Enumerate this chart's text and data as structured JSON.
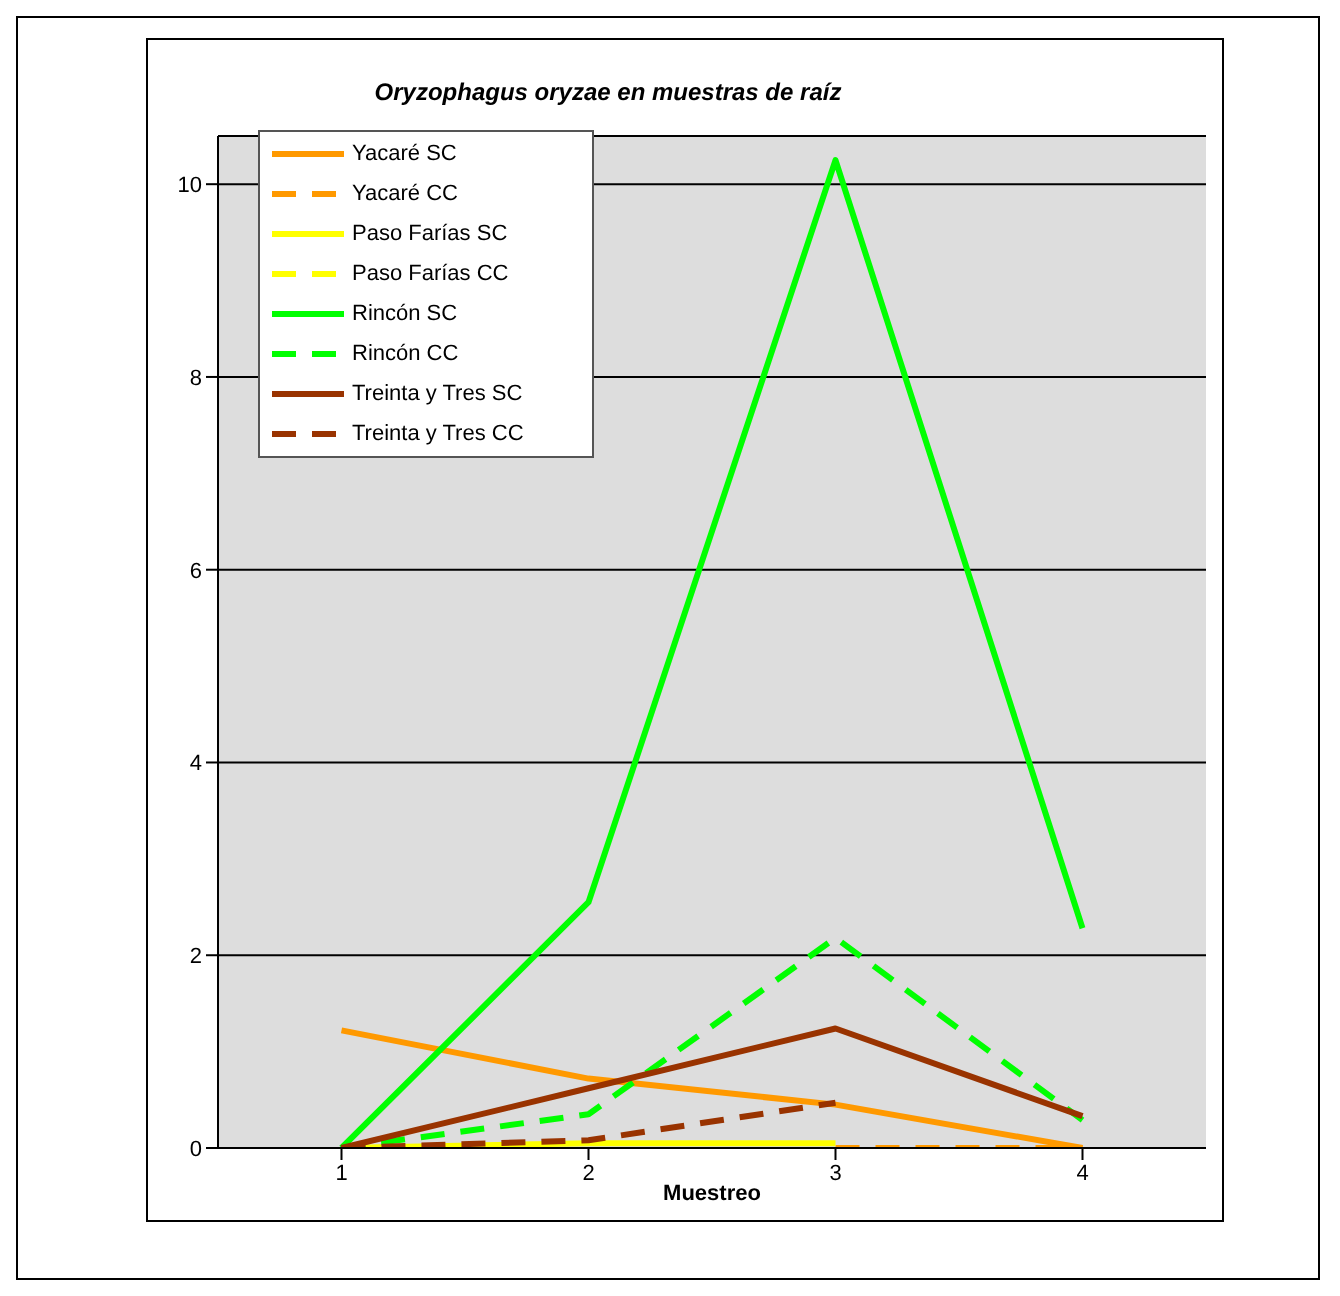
{
  "chart_data": {
    "type": "line",
    "title": "Oryzophagus oryzae en muestras de raíz",
    "xlabel": "Muestreo",
    "categories": [
      "1",
      "2",
      "3",
      "4"
    ],
    "series": [
      {
        "name": "Yacaré SC",
        "color": "#ff9900",
        "line_style": "solid",
        "values": [
          1.22,
          0.72,
          0.45,
          0
        ]
      },
      {
        "name": "Yacaré CC",
        "color": "#ff9900",
        "line_style": "dashed",
        "values": [
          null,
          null,
          0,
          0
        ]
      },
      {
        "name": "Paso Farías SC",
        "color": "#ffff00",
        "line_style": "solid",
        "values": [
          0,
          0.05,
          0.05,
          null
        ]
      },
      {
        "name": "Paso Farías CC",
        "color": "#ffff00",
        "line_style": "dashed",
        "values": [
          null,
          null,
          null,
          null
        ]
      },
      {
        "name": "Rincón SC",
        "color": "#00ff00",
        "line_style": "solid",
        "values": [
          0,
          2.55,
          10.25,
          2.28
        ]
      },
      {
        "name": "Rincón CC",
        "color": "#00ff00",
        "line_style": "dashed",
        "values": [
          0,
          0.35,
          2.18,
          0.29
        ]
      },
      {
        "name": "Treinta y Tres SC",
        "color": "#993300",
        "line_style": "solid",
        "values": [
          0,
          0.62,
          1.24,
          0.33
        ]
      },
      {
        "name": "Treinta y Tres CC",
        "color": "#993300",
        "line_style": "dashed",
        "values": [
          0,
          0.08,
          0.47,
          null
        ]
      }
    ],
    "ylim": [
      0,
      10.5
    ],
    "yticks": [
      0,
      2,
      4,
      6,
      8,
      10
    ],
    "grid": "y",
    "legend": "top left",
    "marker": "none"
  }
}
